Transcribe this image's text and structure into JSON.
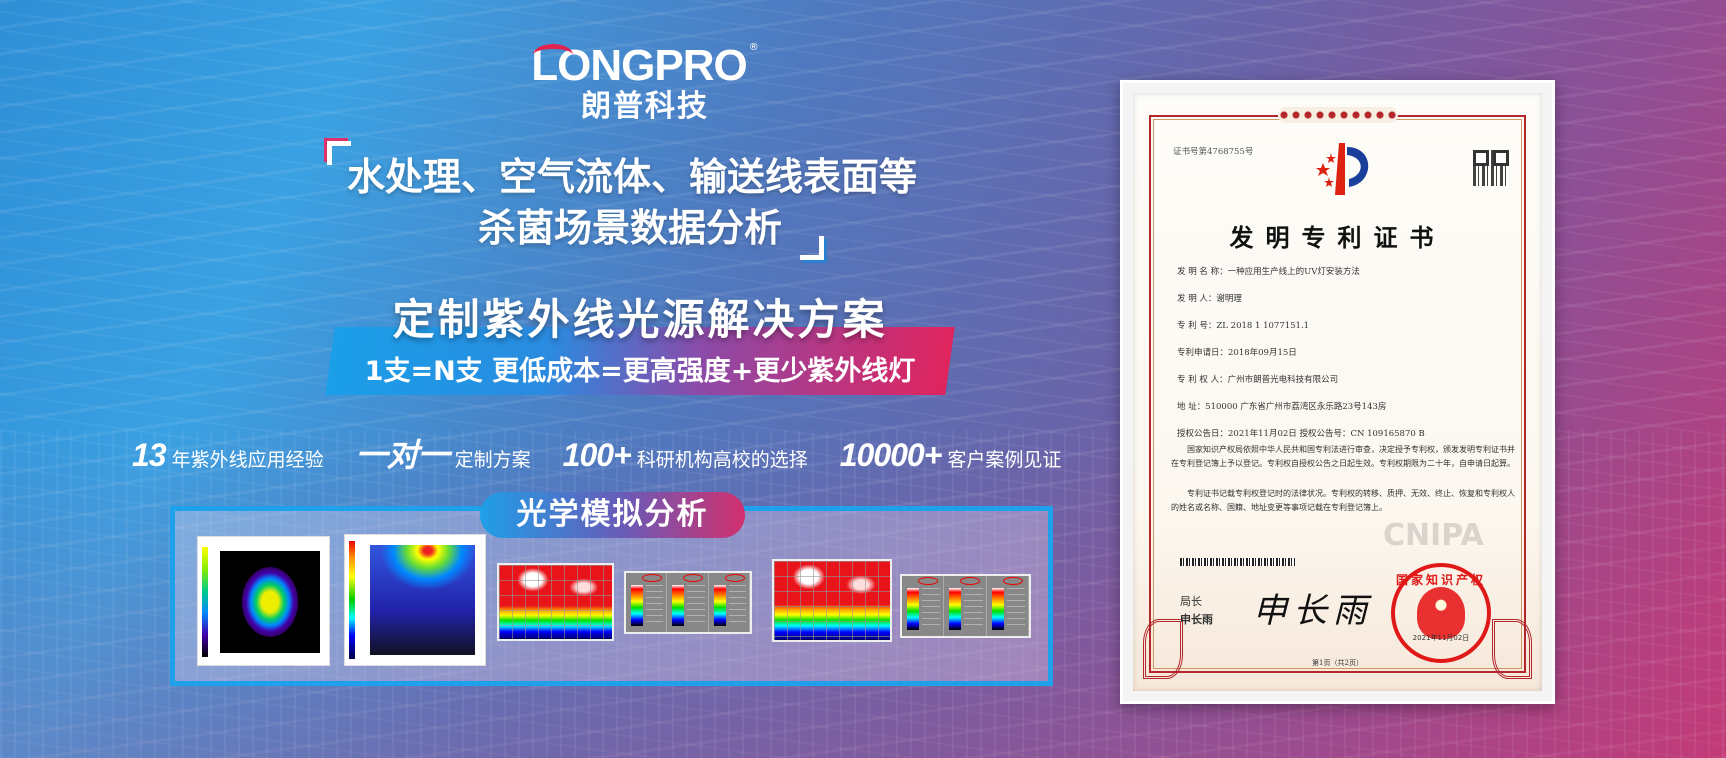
{
  "brand": {
    "logo_en": "LONGPRO",
    "registered": "®",
    "logo_cn": "朗普科技"
  },
  "headline": {
    "line1": "水处理、空气流体、输送线表面等",
    "line2": "杀菌场景数据分析"
  },
  "solution": {
    "title": "定制紫外线光源解决方案",
    "subtitle": "1支=N支   更低成本=更高强度+更少紫外线灯"
  },
  "stats": [
    {
      "value": "13",
      "label": "年紫外线应用经验"
    },
    {
      "value": "一对一",
      "label": "定制方案"
    },
    {
      "value": "100+",
      "label": "科研机构高校的选择"
    },
    {
      "value": "10000+",
      "label": "客户案例见证"
    }
  ],
  "optics": {
    "title": "光学模拟分析"
  },
  "certificate": {
    "number": "证书号第4768755号",
    "title": "发明专利证书",
    "watermark": "CNIPA",
    "fields": [
      "发 明 名 称：一种应用生产线上的UV灯安装方法",
      "发   明   人：谢明理",
      "专   利   号：ZL 2018 1 1077151.1",
      "专利申请日：2018年09月15日",
      "专 利 权 人：广州市朗普光电科技有限公司",
      "地          址：510000 广东省广州市荔湾区永乐路23号143房",
      "授权公告日：2021年11月02日        授权公告号：CN 109165870 B"
    ],
    "paragraph1": "国家知识产权局依照中华人民共和国专利法进行审查，决定授予专利权，颁发发明专利证书并在专利登记簿上予以登记。专利权自授权公告之日起生效。专利权期限为二十年，自申请日起算。",
    "paragraph2": "专利证书记载专利权登记时的法律状况。专利权的转移、质押、无效、终止、恢复和专利权人的姓名或名称、国籍、地址变更等事项记载在专利登记簿上。",
    "director_title": "局长",
    "director_name": "申长雨",
    "signature": "申长雨",
    "seal_text": "国家知识产权局",
    "seal_date": "2021年11月02日",
    "page": "第1页（共2页）"
  },
  "colors": {
    "accent_blue": "#1ea0ea",
    "accent_pink": "#e0245e",
    "seal_red": "#e01818"
  }
}
